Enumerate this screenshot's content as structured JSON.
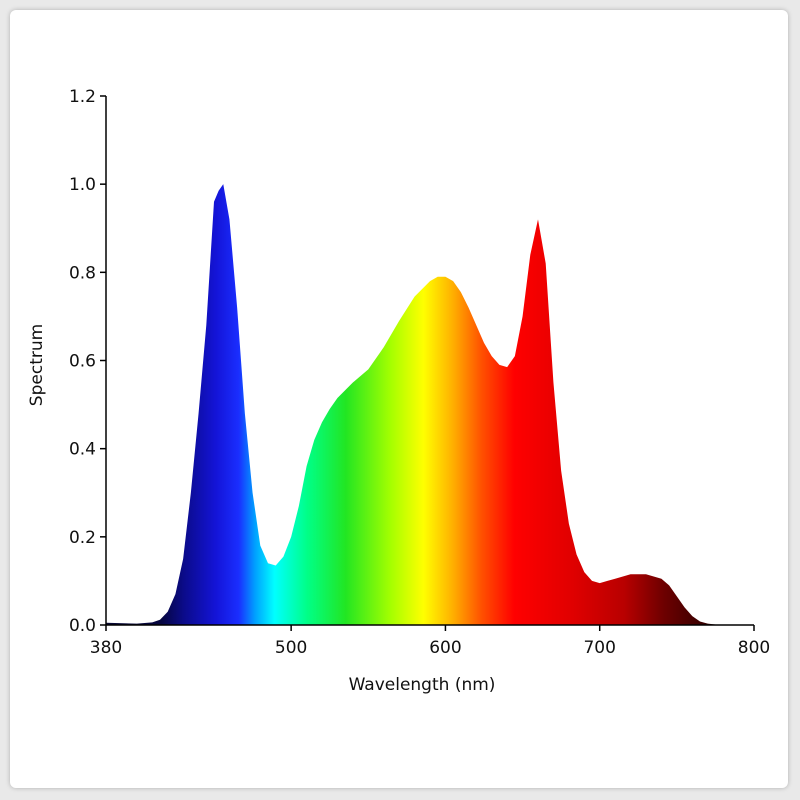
{
  "chart_data": {
    "type": "area",
    "title": "",
    "xlabel": "Wavelength (nm)",
    "ylabel": "Spectrum",
    "xlim": [
      380,
      800
    ],
    "ylim": [
      0,
      1.2
    ],
    "xticks": [
      380,
      500,
      600,
      700,
      800
    ],
    "yticks": [
      0,
      0.2,
      0.4,
      0.6,
      0.8,
      1.0,
      1.2
    ],
    "xtick_labels": [
      "380",
      "500",
      "600",
      "700",
      "800"
    ],
    "ytick_labels": [
      "0.0",
      "0.2",
      "0.4",
      "0.6",
      "0.8",
      "1.0",
      "1.2"
    ],
    "grid": false,
    "fill": "visible-spectrum color gradient",
    "x": [
      380,
      400,
      410,
      415,
      420,
      425,
      430,
      435,
      440,
      445,
      450,
      453,
      456,
      460,
      465,
      470,
      475,
      480,
      485,
      490,
      495,
      500,
      505,
      510,
      515,
      520,
      525,
      530,
      540,
      550,
      560,
      570,
      580,
      590,
      595,
      600,
      605,
      610,
      615,
      620,
      625,
      630,
      635,
      640,
      645,
      650,
      655,
      660,
      665,
      670,
      675,
      680,
      685,
      690,
      695,
      700,
      705,
      710,
      720,
      730,
      740,
      745,
      750,
      755,
      760,
      765,
      770,
      775,
      780,
      790,
      800
    ],
    "y": [
      0.005,
      0.003,
      0.006,
      0.012,
      0.03,
      0.07,
      0.15,
      0.3,
      0.48,
      0.68,
      0.96,
      0.985,
      1.0,
      0.92,
      0.72,
      0.48,
      0.3,
      0.18,
      0.14,
      0.135,
      0.155,
      0.2,
      0.27,
      0.36,
      0.42,
      0.46,
      0.49,
      0.515,
      0.55,
      0.58,
      0.63,
      0.69,
      0.745,
      0.78,
      0.79,
      0.79,
      0.78,
      0.755,
      0.72,
      0.68,
      0.64,
      0.61,
      0.59,
      0.585,
      0.61,
      0.7,
      0.84,
      0.92,
      0.82,
      0.55,
      0.35,
      0.23,
      0.16,
      0.12,
      0.1,
      0.095,
      0.1,
      0.105,
      0.115,
      0.115,
      0.105,
      0.09,
      0.065,
      0.04,
      0.02,
      0.008,
      0.003,
      0.001,
      0.0,
      0.0,
      0.0
    ]
  }
}
